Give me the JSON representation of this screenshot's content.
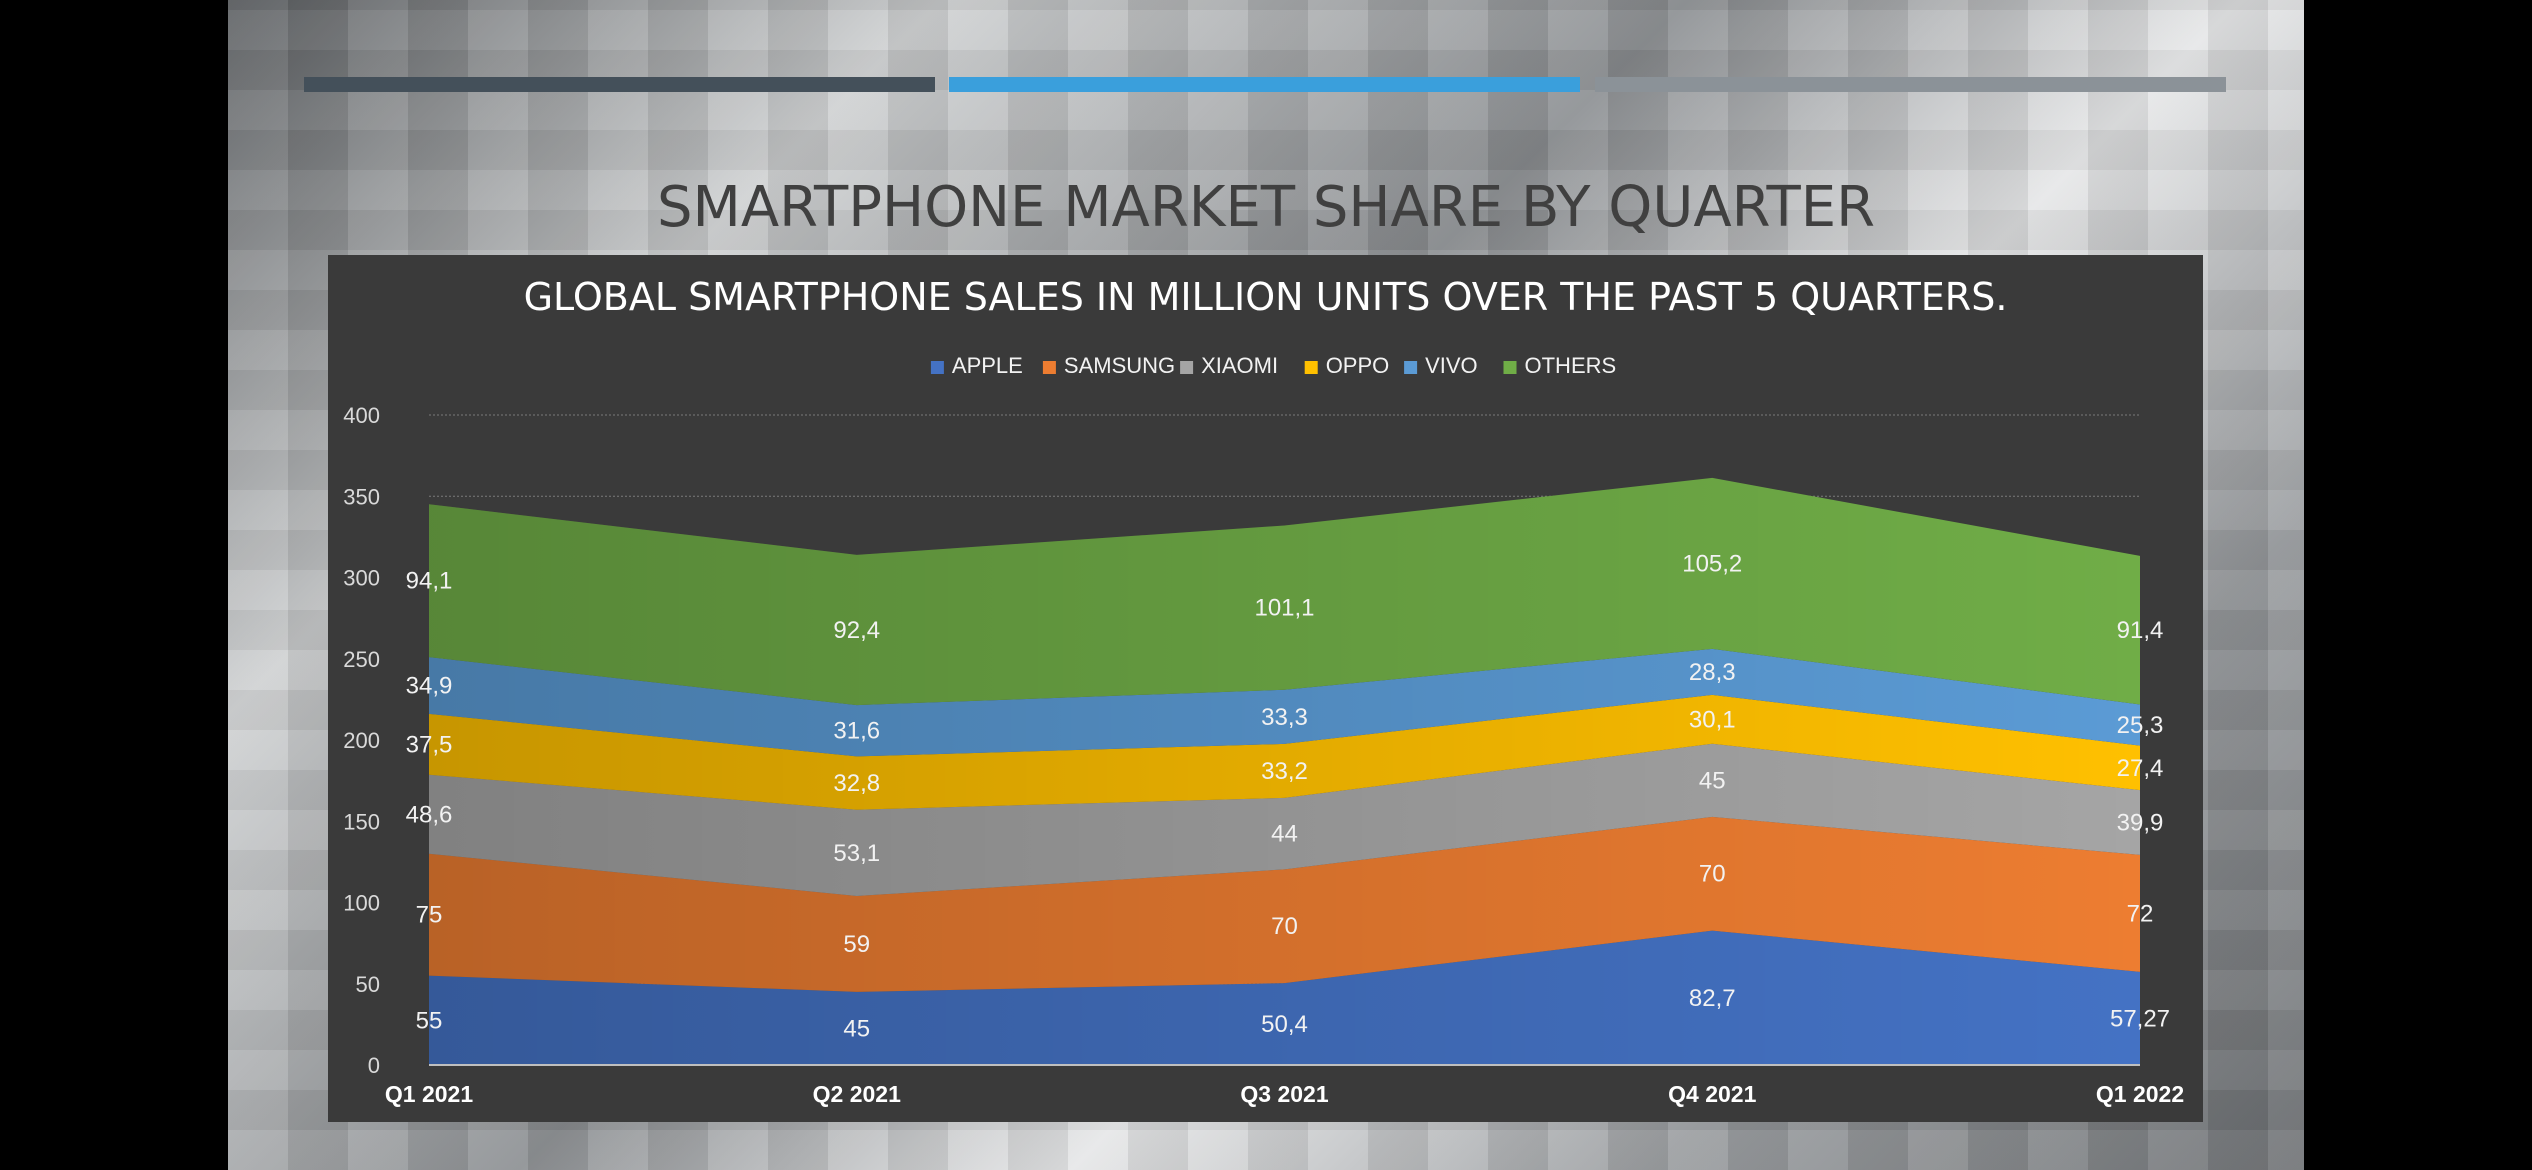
{
  "slide": {
    "title": "SMARTPHONE MARKET SHARE BY QUARTER",
    "bar_colors": [
      "#44505a",
      "#3a9fdc",
      "#8b9298"
    ]
  },
  "chart_data": {
    "type": "area",
    "stacked": true,
    "title": "GLOBAL SMARTPHONE SALES IN MILLION UNITS OVER THE PAST 5 QUARTERS.",
    "xlabel": "",
    "ylabel": "",
    "categories": [
      "Q1 2021",
      "Q2 2021",
      "Q3 2021",
      "Q4 2021",
      "Q1 2022"
    ],
    "series": [
      {
        "name": "APPLE",
        "color": "#4472c4",
        "values": [
          55,
          45,
          50.4,
          82.7,
          57.27
        ],
        "labels": [
          "55",
          "45",
          "50,4",
          "82,7",
          "57,27"
        ]
      },
      {
        "name": "SAMSUNG",
        "color": "#ed7d31",
        "values": [
          75,
          59,
          70,
          70,
          72
        ],
        "labels": [
          "75",
          "59",
          "70",
          "70",
          "72"
        ]
      },
      {
        "name": "XIAOMI",
        "color": "#a5a5a5",
        "values": [
          48.6,
          53.1,
          44,
          45,
          39.9
        ],
        "labels": [
          "48,6",
          "53,1",
          "44",
          "45",
          "39,9"
        ]
      },
      {
        "name": "OPPO",
        "color": "#ffc000",
        "values": [
          37.5,
          32.8,
          33.2,
          30.1,
          27.4
        ],
        "labels": [
          "37,5",
          "32,8",
          "33,2",
          "30,1",
          "27,4"
        ]
      },
      {
        "name": "VIVO",
        "color": "#5b9bd5",
        "values": [
          34.9,
          31.6,
          33.3,
          28.3,
          25.3
        ],
        "labels": [
          "34,9",
          "31,6",
          "33,3",
          "28,3",
          "25,3"
        ]
      },
      {
        "name": "OTHERS",
        "color": "#70ad47",
        "values": [
          94.1,
          92.4,
          101.1,
          105.2,
          91.4
        ],
        "labels": [
          "94,1",
          "92,4",
          "101,1",
          "105,2",
          "91,4"
        ]
      }
    ],
    "ylim": [
      0,
      400
    ],
    "yticks": [
      "0",
      "50",
      "100",
      "150",
      "200",
      "250",
      "300",
      "350",
      "400"
    ],
    "grid": true,
    "legend_position": "top"
  }
}
